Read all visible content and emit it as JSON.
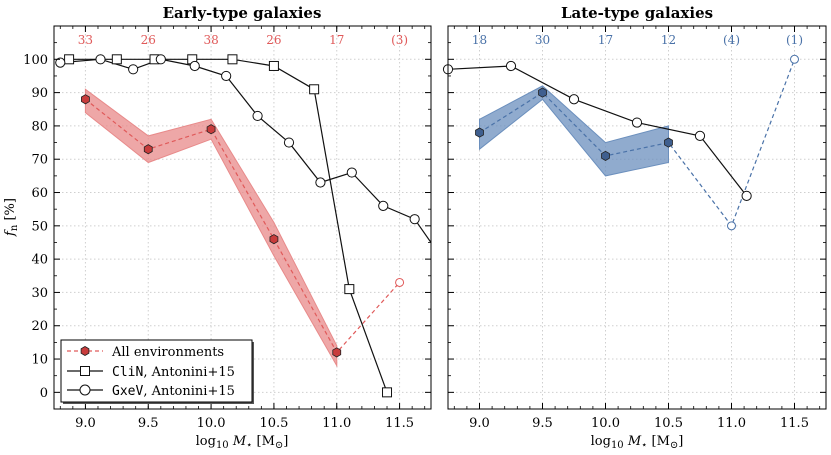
{
  "colors": {
    "red": "#e05a5a",
    "red_fill": "#e88a8a",
    "red_marker": "#c83c3c",
    "blue": "#4a72a8",
    "blue_fill": "#6b8fbd",
    "blue_marker": "#3f5f8f",
    "black": "#111111",
    "grid": "#cfcfcf"
  },
  "legend": {
    "all_env": "All environments",
    "clin_mono": "CliN",
    "clin_rest": ", Antonini+15",
    "gxev_mono": "GxeV",
    "gxev_rest": ", Antonini+15"
  },
  "chart_data": [
    {
      "type": "line",
      "title": "Early-type galaxies",
      "xlabel": "log10 M⋆ [M⊙]",
      "ylabel": "f_n [%]",
      "xlim": [
        8.75,
        11.75
      ],
      "ylim": [
        -5,
        110
      ],
      "xticks": [
        "9.0",
        "9.5",
        "10.0",
        "10.5",
        "11.0",
        "11.5"
      ],
      "yticks": [
        "0",
        "10",
        "20",
        "30",
        "40",
        "50",
        "60",
        "70",
        "80",
        "90",
        "100"
      ],
      "grid": true,
      "legend_position": "bottom-left",
      "counts": [
        {
          "x": 9.0,
          "label": "33"
        },
        {
          "x": 9.5,
          "label": "26"
        },
        {
          "x": 10.0,
          "label": "38"
        },
        {
          "x": 10.5,
          "label": "26"
        },
        {
          "x": 11.0,
          "label": "17"
        },
        {
          "x": 11.5,
          "label": "(3)"
        }
      ],
      "series": [
        {
          "name": "All environments",
          "style": "dashed-hexagon",
          "color": "red",
          "x": [
            9.0,
            9.5,
            10.0,
            10.5,
            11.0
          ],
          "y": [
            88,
            73,
            79,
            46,
            12
          ],
          "band_low": [
            84,
            69,
            76,
            41,
            8
          ],
          "band_high": [
            91,
            77,
            82,
            51,
            14
          ],
          "open_point": {
            "x": 11.5,
            "y": 33
          }
        },
        {
          "name": "CliN, Antonini+15",
          "style": "solid-square",
          "color": "black",
          "x": [
            8.87,
            9.25,
            9.55,
            9.85,
            10.17,
            10.5,
            10.82,
            11.1,
            11.4
          ],
          "y": [
            100,
            100,
            100,
            100,
            100,
            98,
            91,
            31,
            0
          ]
        },
        {
          "name": "GxeV, Antonini+15",
          "style": "solid-circle",
          "color": "black",
          "x": [
            8.8,
            9.12,
            9.38,
            9.6,
            9.87,
            10.12,
            10.37,
            10.62,
            10.87,
            11.12,
            11.37,
            11.62,
            11.75
          ],
          "y": [
            99,
            100,
            97,
            100,
            98,
            95,
            83,
            75,
            63,
            66,
            56,
            52,
            45
          ]
        }
      ]
    },
    {
      "type": "line",
      "title": "Late-type galaxies",
      "xlabel": "log10 M⋆ [M⊙]",
      "xlim": [
        8.75,
        11.75
      ],
      "ylim": [
        -5,
        110
      ],
      "xticks": [
        "9.0",
        "9.5",
        "10.0",
        "10.5",
        "11.0",
        "11.5"
      ],
      "grid": true,
      "counts": [
        {
          "x": 9.0,
          "label": "18"
        },
        {
          "x": 9.5,
          "label": "30"
        },
        {
          "x": 10.0,
          "label": "17"
        },
        {
          "x": 10.5,
          "label": "12"
        },
        {
          "x": 11.0,
          "label": "(4)"
        },
        {
          "x": 11.5,
          "label": "(1)"
        }
      ],
      "series": [
        {
          "name": "All environments",
          "style": "dashed-hexagon",
          "color": "blue",
          "x": [
            9.0,
            9.5,
            10.0,
            10.5
          ],
          "y": [
            78,
            90,
            71,
            75
          ],
          "band_low": [
            73,
            88,
            65,
            69
          ],
          "band_high": [
            82,
            92,
            75,
            80
          ],
          "open_points": [
            {
              "x": 11.0,
              "y": 50
            },
            {
              "x": 11.5,
              "y": 100
            }
          ],
          "dashed_to_open": true
        },
        {
          "name": "GxeV, Antonini+15",
          "style": "solid-circle",
          "color": "black",
          "x": [
            8.75,
            9.25,
            9.75,
            10.25,
            10.75,
            11.12
          ],
          "y": [
            97,
            98,
            88,
            81,
            77,
            59
          ]
        }
      ]
    }
  ]
}
